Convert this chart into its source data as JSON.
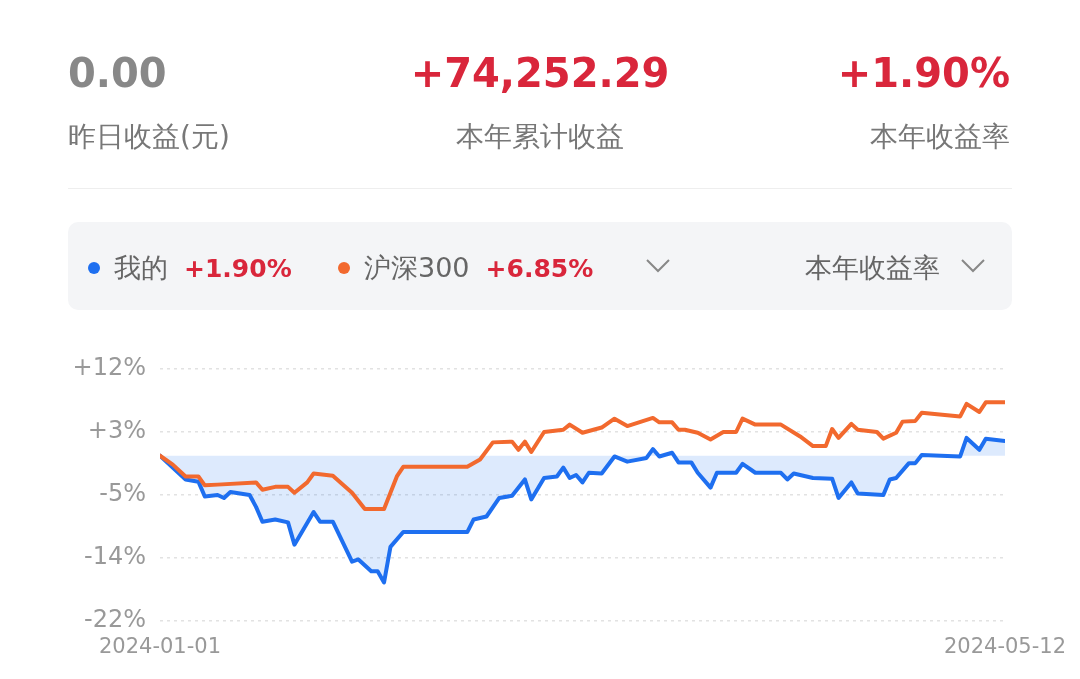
{
  "chart_data": {
    "type": "line",
    "legend": "top left",
    "grid": "y",
    "marker": "none",
    "line_style": "solid",
    "xlim": [
      "2024-01-01",
      "2024-05-12"
    ],
    "xticks": [
      "2024-01-01",
      "2024-05-12"
    ],
    "ylim": [
      -22.3,
      11.7
    ],
    "yticks": [
      {
        "value": 11.7,
        "label": "+12%"
      },
      {
        "value": 3.2,
        "label": "+3%"
      },
      {
        "value": -5.3,
        "label": "-5%"
      },
      {
        "value": -13.8,
        "label": "-14%"
      },
      {
        "value": -22.3,
        "label": "-22%"
      }
    ],
    "annotations": [
      "0.00",
      "昨日收益(元)",
      "+74,252.29",
      "本年累计收益",
      "+1.90%",
      "本年收益率",
      "+1.90%",
      "+6.85%",
      "本年收益率"
    ],
    "series": [
      {
        "name": "我的",
        "type": "area",
        "color": "#1e6ff0",
        "x": [
          "2024-01-01",
          "2024-01-05",
          "2024-01-07",
          "2024-01-08",
          "2024-01-10",
          "2024-01-11",
          "2024-01-12",
          "2024-01-15",
          "2024-01-16",
          "2024-01-17",
          "2024-01-19",
          "2024-01-21",
          "2024-01-22",
          "2024-01-25",
          "2024-01-26",
          "2024-01-28",
          "2024-01-31",
          "2024-02-01",
          "2024-02-03",
          "2024-02-04",
          "2024-02-05",
          "2024-02-06",
          "2024-02-08",
          "2024-02-18",
          "2024-02-19",
          "2024-02-21",
          "2024-02-23",
          "2024-02-25",
          "2024-02-27",
          "2024-02-28",
          "2024-03-01",
          "2024-03-03",
          "2024-03-04",
          "2024-03-05",
          "2024-03-06",
          "2024-03-07",
          "2024-03-08",
          "2024-03-10",
          "2024-03-12",
          "2024-03-14",
          "2024-03-17",
          "2024-03-18",
          "2024-03-19",
          "2024-03-21",
          "2024-03-22",
          "2024-03-24",
          "2024-03-25",
          "2024-03-27",
          "2024-03-28",
          "2024-03-31",
          "2024-04-01",
          "2024-04-03",
          "2024-04-07",
          "2024-04-08",
          "2024-04-09",
          "2024-04-12",
          "2024-04-15",
          "2024-04-16",
          "2024-04-18",
          "2024-04-19",
          "2024-04-23",
          "2024-04-24",
          "2024-04-25",
          "2024-04-27",
          "2024-04-28",
          "2024-04-29",
          "2024-05-05",
          "2024-05-06",
          "2024-05-08",
          "2024-05-09",
          "2024-05-12"
        ],
        "values": [
          0,
          -3.2,
          -3.5,
          -5.5,
          -5.3,
          -5.7,
          -4.9,
          -5.3,
          -6.9,
          -8.9,
          -8.6,
          -9.0,
          -12.0,
          -7.6,
          -8.9,
          -8.9,
          -14.3,
          -14.0,
          -15.6,
          -15.6,
          -17.1,
          -12.3,
          -10.3,
          -10.3,
          -8.6,
          -8.2,
          -5.7,
          -5.4,
          -3.2,
          -5.9,
          -3.0,
          -2.8,
          -1.6,
          -3.0,
          -2.6,
          -3.6,
          -2.3,
          -2.4,
          -0.1,
          -0.8,
          -0.3,
          0.9,
          -0.1,
          0.4,
          -0.9,
          -0.9,
          -2.3,
          -4.3,
          -2.3,
          -2.3,
          -1.1,
          -2.3,
          -2.3,
          -3.2,
          -2.4,
          -3.0,
          -3.1,
          -5.7,
          -3.6,
          -5.1,
          -5.3,
          -3.2,
          -3.0,
          -1.0,
          -1.0,
          0.1,
          -0.1,
          2.4,
          0.8,
          2.3,
          2.0
        ]
      },
      {
        "name": "沪深300",
        "type": "line",
        "color": "#f2692e",
        "x": [
          "2024-01-01",
          "2024-01-03",
          "2024-01-05",
          "2024-01-07",
          "2024-01-08",
          "2024-01-10",
          "2024-01-16",
          "2024-01-17",
          "2024-01-19",
          "2024-01-21",
          "2024-01-22",
          "2024-01-24",
          "2024-01-25",
          "2024-01-28",
          "2024-01-31",
          "2024-02-02",
          "2024-02-05",
          "2024-02-07",
          "2024-02-08",
          "2024-02-18",
          "2024-02-20",
          "2024-02-22",
          "2024-02-25",
          "2024-02-26",
          "2024-02-27",
          "2024-02-28",
          "2024-03-01",
          "2024-03-04",
          "2024-03-05",
          "2024-03-07",
          "2024-03-10",
          "2024-03-12",
          "2024-03-14",
          "2024-03-18",
          "2024-03-19",
          "2024-03-21",
          "2024-03-22",
          "2024-03-23",
          "2024-03-25",
          "2024-03-27",
          "2024-03-29",
          "2024-03-31",
          "2024-04-01",
          "2024-04-03",
          "2024-04-07",
          "2024-04-10",
          "2024-04-12",
          "2024-04-14",
          "2024-04-15",
          "2024-04-16",
          "2024-04-18",
          "2024-04-19",
          "2024-04-22",
          "2024-04-23",
          "2024-04-25",
          "2024-04-26",
          "2024-04-28",
          "2024-04-29",
          "2024-05-05",
          "2024-05-06",
          "2024-05-08",
          "2024-05-09",
          "2024-05-12"
        ],
        "values": [
          0,
          -1.2,
          -2.8,
          -2.8,
          -4.0,
          -3.9,
          -3.6,
          -4.6,
          -4.2,
          -4.2,
          -5.0,
          -3.6,
          -2.4,
          -2.7,
          -5.0,
          -7.2,
          -7.2,
          -2.8,
          -1.5,
          -1.5,
          -0.5,
          1.8,
          1.9,
          0.8,
          1.9,
          0.5,
          3.2,
          3.5,
          4.2,
          3.1,
          3.8,
          5.0,
          4.0,
          5.1,
          4.5,
          4.5,
          3.5,
          3.5,
          3.1,
          2.2,
          3.2,
          3.2,
          5.0,
          4.2,
          4.2,
          2.6,
          1.3,
          1.3,
          3.6,
          2.4,
          4.3,
          3.5,
          3.2,
          2.3,
          3.1,
          4.6,
          4.7,
          5.8,
          5.3,
          7.0,
          5.9,
          7.2,
          7.2
        ]
      }
    ]
  }
}
